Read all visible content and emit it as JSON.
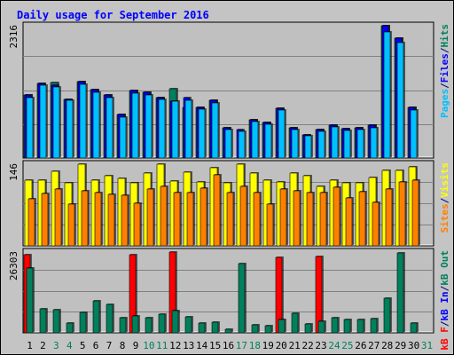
{
  "chart_data": {
    "type": "bar",
    "title": "Daily usage for September 2016",
    "categories": [
      "1",
      "2",
      "3",
      "4",
      "5",
      "6",
      "7",
      "8",
      "9",
      "10",
      "11",
      "12",
      "13",
      "14",
      "15",
      "16",
      "17",
      "18",
      "19",
      "20",
      "21",
      "22",
      "23",
      "24",
      "25",
      "26",
      "27",
      "28",
      "29",
      "30",
      "31"
    ],
    "weekend_days": [
      "3",
      "4",
      "10",
      "11",
      "17",
      "18",
      "24",
      "25",
      "31"
    ],
    "panels": [
      {
        "id": "hits",
        "max_label": "2316",
        "ymax": 2316,
        "series": [
          {
            "name": "Hits",
            "color": "#00805c",
            "values": [
              1097,
              1304,
              1321,
              1032,
              1334,
              1190,
              1097,
              764,
              1174,
              1144,
              1056,
              1205,
              883,
              889,
              1004,
              534,
              0,
              671,
              627,
              874,
              535,
              406,
              494,
              572,
              515,
              531,
              572,
              2316,
              2097,
              888,
              0
            ]
          },
          {
            "name": "Files",
            "color": "#0000ff",
            "values": [
              1097,
              1304,
              1274,
              1032,
              1334,
              1190,
              1097,
              764,
              1174,
              1144,
              1056,
              1000,
              1050,
              883,
              1004,
              534,
              500,
              671,
              627,
              874,
              535,
              406,
              494,
              572,
              515,
              531,
              572,
              2316,
              2097,
              888,
              0
            ]
          },
          {
            "name": "Pages",
            "color": "#00c0ff",
            "values": [
              1052,
              1273,
              1244,
              1004,
              1294,
              1149,
              1050,
              720,
              1136,
              1104,
              1020,
              988,
              1010,
              854,
              966,
              503,
              468,
              637,
              595,
              832,
              501,
              382,
              461,
              541,
              484,
              501,
              535,
              2212,
              2013,
              846,
              0
            ]
          }
        ],
        "axis_label_parts": [
          {
            "text": "Pages",
            "color": "#00c0ff"
          },
          {
            "text": "/",
            "color": "#000080"
          },
          {
            "text": "Files",
            "color": "#0000ff"
          },
          {
            "text": "/",
            "color": "#000080"
          },
          {
            "text": "Hits",
            "color": "#00805c"
          }
        ]
      },
      {
        "id": "visits",
        "max_label": "146",
        "ymax": 146,
        "series": [
          {
            "name": "Visits",
            "color": "#ffff00",
            "values": [
              117,
              117,
              133,
              112,
              146,
              118,
              125,
              120,
              112,
              130,
              146,
              116,
              132,
              115,
              140,
              112,
              146,
              130,
              117,
              115,
              130,
              126,
              107,
              117,
              112,
              113,
              122,
              135,
              135,
              142,
              0
            ]
          },
          {
            "name": "Sites",
            "color": "#ff8000",
            "values": [
              84,
              93,
              102,
              75,
              98,
              96,
              92,
              91,
              76,
              102,
              106,
              96,
              95,
              103,
              127,
              96,
              107,
              95,
              75,
              102,
              98,
              96,
              96,
              104,
              86,
              97,
              77,
              102,
              115,
              117,
              0
            ]
          }
        ],
        "axis_label_parts": [
          {
            "text": "Sites",
            "color": "#ff8000"
          },
          {
            "text": "/",
            "color": "#000080"
          },
          {
            "text": "Visits",
            "color": "#ffff00"
          }
        ]
      },
      {
        "id": "kbytes",
        "max_label": "26303",
        "ymax": 26303,
        "series": [
          {
            "name": "kB F",
            "color": "#ff0000",
            "values": [
              25300,
              0,
              0,
              0,
              0,
              0,
              0,
              0,
              25500,
              0,
              0,
              26303,
              0,
              0,
              0,
              0,
              0,
              0,
              0,
              24700,
              0,
              0,
              24900,
              0,
              0,
              0,
              0,
              0,
              0,
              0,
              0
            ]
          },
          {
            "name": "kB In",
            "color": "#0000ff",
            "values": [
              0,
              0,
              0,
              0,
              0,
              0,
              0,
              0,
              0,
              0,
              0,
              0,
              0,
              0,
              0,
              0,
              0,
              0,
              0,
              0,
              0,
              0,
              0,
              0,
              0,
              0,
              0,
              0,
              0,
              0,
              0
            ]
          },
          {
            "name": "kB Out",
            "color": "#00805c",
            "values": [
              21100,
              7700,
              7500,
              3100,
              6700,
              10500,
              9200,
              4800,
              5500,
              4900,
              6000,
              7300,
              5100,
              3200,
              3400,
              1200,
              22600,
              2500,
              2300,
              4200,
              6500,
              2900,
              3900,
              4900,
              4200,
              4300,
              4700,
              11300,
              26000,
              3200,
              0
            ]
          }
        ],
        "axis_label_parts": [
          {
            "text": "kB F",
            "color": "#ff0000"
          },
          {
            "text": "/",
            "color": "#000080"
          },
          {
            "text": "kB In",
            "color": "#0000ff"
          },
          {
            "text": "/",
            "color": "#000080"
          },
          {
            "text": "kB Out",
            "color": "#00805c"
          }
        ]
      }
    ],
    "grid": true,
    "legend_position": "right (vertical text)",
    "background_color": "#c4c4c4",
    "plot_background_color": "#c0c0c0",
    "title_color": "#0000ff",
    "weekday_label_color": "#000000",
    "weekend_label_color": "#00805c"
  }
}
